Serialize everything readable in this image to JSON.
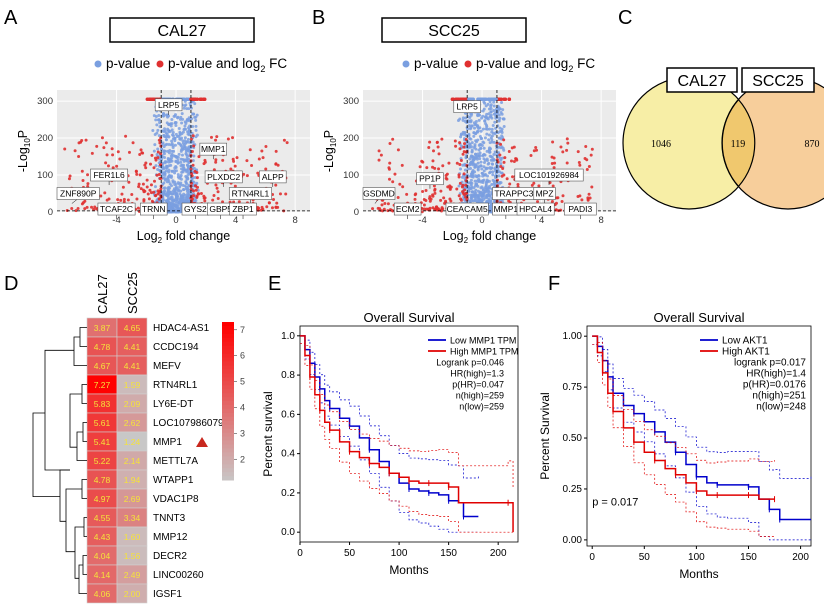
{
  "panels": {
    "A": "A",
    "B": "B",
    "C": "C",
    "D": "D",
    "E": "E",
    "F": "F"
  },
  "legend": {
    "blue": "p-value",
    "red": "p-value and log",
    "red_sub": "2",
    "red_tail": " FC"
  },
  "colors": {
    "ns": "#7a9fe0",
    "sig": "#e03030",
    "venn_left": "#f7eea6",
    "venn_right": "#f7ce9b",
    "hm_high": "#ff0000",
    "hm_low": "#c8c8c8",
    "km_low": "#0000cc",
    "km_high": "#e00000"
  },
  "chart_data": [
    {
      "type": "scatter",
      "id": "volcanoA",
      "title": "CAL27",
      "xlabel_main": "Log",
      "xlabel_sub": "2",
      "xlabel_tail": " fold change",
      "ylabel_main": "-Log",
      "ylabel_sub": "10",
      "ylabel_tail": "P",
      "xlim": [
        -8,
        9
      ],
      "ylim": [
        0,
        330
      ],
      "xticks": [
        -4,
        0,
        4,
        8
      ],
      "yticks": [
        0,
        100,
        200,
        300
      ],
      "labels": [
        {
          "text": "LRP5",
          "x": -0.5,
          "y": 290
        },
        {
          "text": "MMP1",
          "x": 2.5,
          "y": 170
        },
        {
          "text": "FER1L6",
          "x": -4.5,
          "y": 100
        },
        {
          "text": "PLXDC2",
          "x": 3.2,
          "y": 95
        },
        {
          "text": "ALPP",
          "x": 6.5,
          "y": 95
        },
        {
          "text": "ZNF890P",
          "x": -7.0,
          "y": 50
        },
        {
          "text": "RTN4RL1",
          "x": 5.0,
          "y": 50
        },
        {
          "text": "TCAF2C",
          "x": -4.0,
          "y": 8
        },
        {
          "text": "TRNN",
          "x": -1.5,
          "y": 8
        },
        {
          "text": "GYS2",
          "x": 1.3,
          "y": 8
        },
        {
          "text": "GBP5",
          "x": 3.0,
          "y": 8
        },
        {
          "text": "ZBP1",
          "x": 4.5,
          "y": 8
        }
      ]
    },
    {
      "type": "scatter",
      "id": "volcanoB",
      "title": "SCC25",
      "xlabel_main": "Log",
      "xlabel_sub": "2",
      "xlabel_tail": " fold change",
      "ylabel_main": "-Log",
      "ylabel_sub": "10",
      "ylabel_tail": "P",
      "xlim": [
        -8,
        9
      ],
      "ylim": [
        0,
        330
      ],
      "xticks": [
        -4,
        0,
        4,
        8
      ],
      "yticks": [
        0,
        100,
        200,
        300
      ],
      "labels": [
        {
          "text": "LRP5",
          "x": -1.0,
          "y": 285
        },
        {
          "text": "PP1P",
          "x": -3.5,
          "y": 90
        },
        {
          "text": "LOC101926984",
          "x": 4.5,
          "y": 100
        },
        {
          "text": "GSDMD",
          "x": -7.2,
          "y": 50
        },
        {
          "text": "TRAPPC3L",
          "x": 2.3,
          "y": 50
        },
        {
          "text": "MPZ",
          "x": 4.2,
          "y": 50
        },
        {
          "text": "ECM2",
          "x": -5.0,
          "y": 8
        },
        {
          "text": "CEACAM5",
          "x": -1.0,
          "y": 8
        },
        {
          "text": "MMP1",
          "x": 1.6,
          "y": 8
        },
        {
          "text": "HPCAL4",
          "x": 3.6,
          "y": 8
        },
        {
          "text": "PADI3",
          "x": 6.6,
          "y": 8
        }
      ]
    },
    {
      "type": "venn",
      "id": "venn",
      "sets": [
        {
          "name": "CAL27",
          "only": "1046"
        },
        {
          "name": "SCC25",
          "only": "870"
        }
      ],
      "intersection": "119"
    },
    {
      "type": "heatmap",
      "id": "heatmap",
      "columns": [
        "CAL27",
        "SCC25"
      ],
      "rows": [
        "HDAC4-AS1",
        "CCDC194",
        "MEFV",
        "RTN4RL1",
        "LY6E-DT",
        "LOC107986079",
        "MMP1",
        "METTL7A",
        "WTAPP1",
        "VDAC1P8",
        "TNNT3",
        "MMP12",
        "DECR2",
        "LINC00260",
        "IGSF1"
      ],
      "values": [
        [
          3.87,
          4.65
        ],
        [
          4.78,
          4.41
        ],
        [
          4.67,
          4.41
        ],
        [
          7.27,
          1.59
        ],
        [
          5.83,
          2.09
        ],
        [
          5.61,
          2.62
        ],
        [
          5.41,
          1.24
        ],
        [
          5.22,
          2.14
        ],
        [
          4.78,
          1.94
        ],
        [
          4.97,
          2.69
        ],
        [
          4.55,
          3.34
        ],
        [
          4.43,
          1.6
        ],
        [
          4.04,
          1.56
        ],
        [
          4.14,
          2.49
        ],
        [
          4.06,
          2.0
        ]
      ],
      "labels": [
        [
          "3.87",
          "4.65"
        ],
        [
          "4.78",
          "4.41"
        ],
        [
          "4.67",
          "4.41"
        ],
        [
          "7.27",
          "1.59"
        ],
        [
          "5.83",
          "2.09"
        ],
        [
          "5.61",
          "2.62"
        ],
        [
          "5.41",
          "1.24"
        ],
        [
          "5.22",
          "2.14"
        ],
        [
          "4.78",
          "1.94"
        ],
        [
          "4.97",
          "2.69"
        ],
        [
          "4.55",
          "3.34"
        ],
        [
          "4.43",
          "1.60"
        ],
        [
          "4.04",
          "1.56"
        ],
        [
          "4.14",
          "2.49"
        ],
        [
          "4.06",
          "2.00"
        ]
      ],
      "scale_ticks": [
        "7",
        "6",
        "5",
        "4",
        "3",
        "2"
      ],
      "scale_range": [
        1.2,
        7.3
      ],
      "highlight_row": "MMP1"
    },
    {
      "type": "line",
      "id": "kmE",
      "title": "Overall Survival",
      "xlabel": "Months",
      "ylabel": "Percent survival",
      "xlim": [
        0,
        220
      ],
      "ylim": [
        -0.05,
        1.05
      ],
      "xticks": [
        0,
        50,
        100,
        150,
        200
      ],
      "yticks": [
        "0.0",
        "0.2",
        "0.4",
        "0.6",
        "0.8",
        "1.0"
      ],
      "series": [
        {
          "name": "Low MMP1 TPM",
          "x": [
            0,
            5,
            10,
            15,
            20,
            25,
            30,
            40,
            50,
            60,
            70,
            80,
            90,
            100,
            110,
            120,
            130,
            140,
            150,
            160,
            165,
            180
          ],
          "y": [
            1.0,
            0.93,
            0.86,
            0.79,
            0.73,
            0.67,
            0.63,
            0.58,
            0.54,
            0.48,
            0.42,
            0.36,
            0.3,
            0.25,
            0.22,
            0.21,
            0.2,
            0.19,
            0.16,
            0.15,
            0.08,
            0.08
          ]
        },
        {
          "name": "High MMP1 TPM",
          "x": [
            0,
            5,
            10,
            15,
            20,
            25,
            30,
            40,
            50,
            60,
            70,
            80,
            90,
            100,
            110,
            120,
            130,
            140,
            150,
            160,
            210,
            215
          ],
          "y": [
            1.0,
            0.9,
            0.79,
            0.7,
            0.62,
            0.56,
            0.52,
            0.46,
            0.41,
            0.38,
            0.35,
            0.33,
            0.3,
            0.28,
            0.26,
            0.25,
            0.25,
            0.25,
            0.23,
            0.15,
            0.15,
            0.0
          ]
        }
      ],
      "stats": [
        "Logrank p=0.046",
        "HR(high)=1.3",
        "p(HR)=0.047",
        "n(high)=259",
        "n(low)=259"
      ]
    },
    {
      "type": "line",
      "id": "kmF",
      "title": "Overall Survival",
      "xlabel": "Months",
      "ylabel": "Percent Survival",
      "xlim": [
        -5,
        210
      ],
      "ylim": [
        -0.03,
        1.05
      ],
      "xticks": [
        0,
        50,
        100,
        150,
        200
      ],
      "yticks": [
        "0.00",
        "0.25",
        "0.50",
        "0.75",
        "1.00"
      ],
      "series": [
        {
          "name": "Low AKT1",
          "x": [
            0,
            5,
            10,
            15,
            20,
            30,
            40,
            50,
            60,
            70,
            80,
            90,
            100,
            110,
            120,
            130,
            150,
            160,
            170,
            175,
            180,
            210
          ],
          "y": [
            1.0,
            0.95,
            0.88,
            0.8,
            0.72,
            0.66,
            0.62,
            0.58,
            0.53,
            0.48,
            0.43,
            0.37,
            0.31,
            0.28,
            0.27,
            0.27,
            0.26,
            0.2,
            0.15,
            0.15,
            0.1,
            0.1
          ]
        },
        {
          "name": "High AKT1",
          "x": [
            0,
            5,
            10,
            15,
            20,
            30,
            40,
            50,
            60,
            70,
            80,
            90,
            100,
            110,
            120,
            130,
            150,
            160,
            175
          ],
          "y": [
            1.0,
            0.92,
            0.82,
            0.72,
            0.63,
            0.55,
            0.48,
            0.43,
            0.39,
            0.35,
            0.32,
            0.28,
            0.24,
            0.22,
            0.22,
            0.22,
            0.22,
            0.2,
            0.2
          ]
        }
      ],
      "stats": [
        "logrank p=0.017",
        "HR(high)=1.4",
        "p(HR)=0.0176",
        "n(high)=251",
        "n(low)=248"
      ],
      "annotation": "p = 0.017"
    }
  ]
}
